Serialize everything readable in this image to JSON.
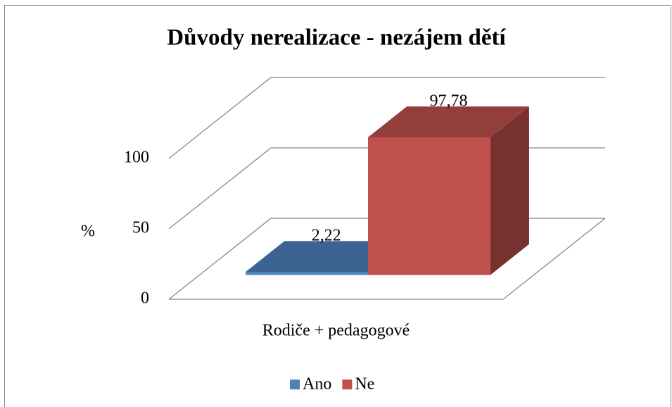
{
  "chart_data": {
    "type": "bar3d",
    "title": "Důvody nerealizace - nezájem dětí",
    "y_label": "%",
    "categories": [
      "Rodiče + pedagogové"
    ],
    "series": [
      {
        "name": "Ano",
        "color": "#4f81bd",
        "values": [
          2.22
        ],
        "value_labels": [
          "2,22"
        ]
      },
      {
        "name": "Ne",
        "color": "#c0504d",
        "values": [
          97.78
        ],
        "value_labels": [
          "97,78"
        ]
      }
    ],
    "ylim": [
      0,
      100
    ],
    "yticks": [
      0,
      50,
      100
    ],
    "grid": true,
    "legend": "bottom"
  }
}
